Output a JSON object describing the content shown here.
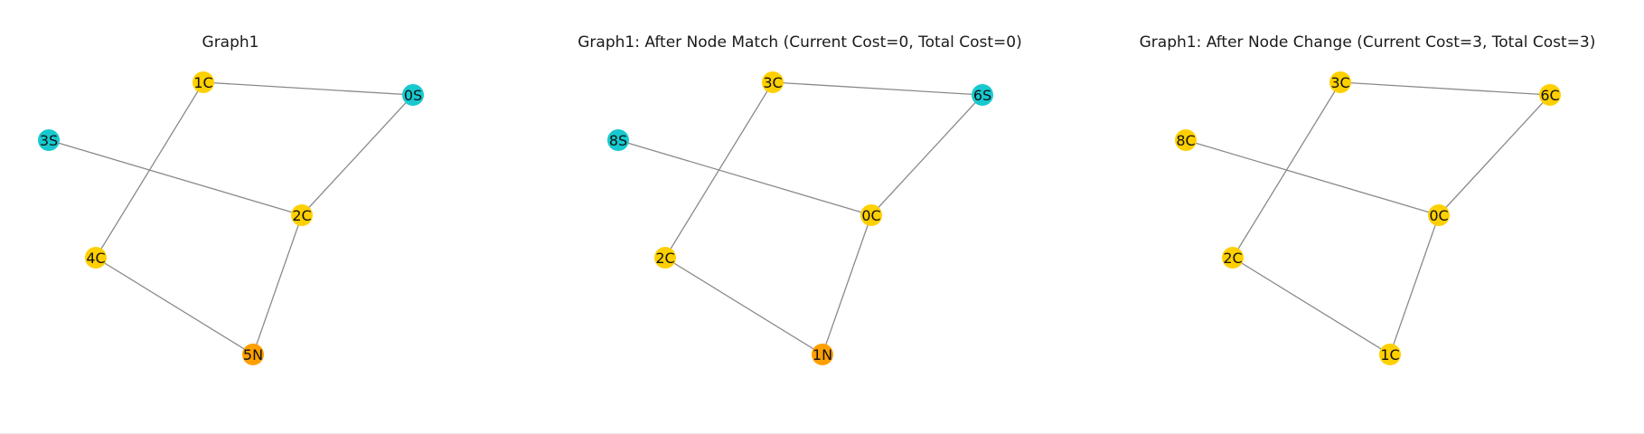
{
  "colors": {
    "C": "#FFD000",
    "S": "#17C9CF",
    "N": "#FF9F00",
    "edge": "#8a8a8a"
  },
  "graphs": [
    {
      "title": "Graph1",
      "nodes": [
        {
          "id": "a",
          "label": "1C",
          "type": "C"
        },
        {
          "id": "b",
          "label": "0S",
          "type": "S"
        },
        {
          "id": "c",
          "label": "3S",
          "type": "S"
        },
        {
          "id": "d",
          "label": "2C",
          "type": "C"
        },
        {
          "id": "e",
          "label": "4C",
          "type": "C"
        },
        {
          "id": "f",
          "label": "5N",
          "type": "N"
        }
      ]
    },
    {
      "title": "Graph1: After Node Match (Current Cost=0, Total Cost=0)",
      "nodes": [
        {
          "id": "a",
          "label": "3C",
          "type": "C"
        },
        {
          "id": "b",
          "label": "6S",
          "type": "S"
        },
        {
          "id": "c",
          "label": "8S",
          "type": "S"
        },
        {
          "id": "d",
          "label": "0C",
          "type": "C"
        },
        {
          "id": "e",
          "label": "2C",
          "type": "C"
        },
        {
          "id": "f",
          "label": "1N",
          "type": "N"
        }
      ]
    },
    {
      "title": "Graph1: After Node Change (Current Cost=3, Total Cost=3)",
      "nodes": [
        {
          "id": "a",
          "label": "3C",
          "type": "C"
        },
        {
          "id": "b",
          "label": "6C",
          "type": "C"
        },
        {
          "id": "c",
          "label": "8C",
          "type": "C"
        },
        {
          "id": "d",
          "label": "0C",
          "type": "C"
        },
        {
          "id": "e",
          "label": "2C",
          "type": "C"
        },
        {
          "id": "f",
          "label": "1C",
          "type": "C"
        }
      ]
    }
  ],
  "edges": [
    [
      "a",
      "b"
    ],
    [
      "a",
      "e"
    ],
    [
      "b",
      "d"
    ],
    [
      "c",
      "d"
    ],
    [
      "d",
      "f"
    ],
    [
      "e",
      "f"
    ]
  ]
}
